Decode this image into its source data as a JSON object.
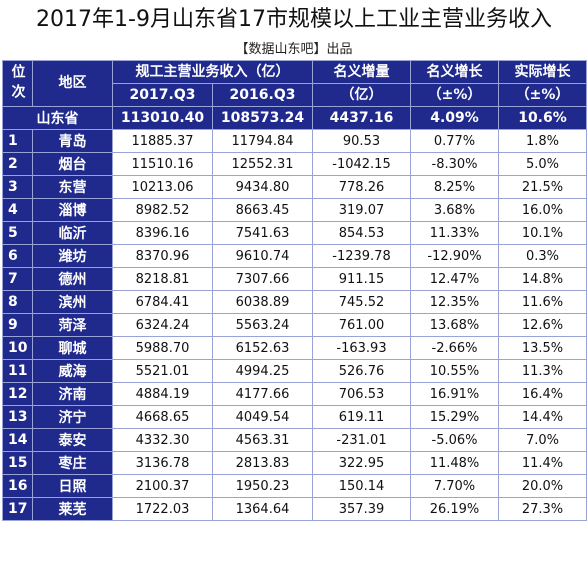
{
  "title": "2017年1-9月山东省17市规模以上工业主营业务收入",
  "source": "【数据山东吧】出品",
  "headers": {
    "rank": "位次",
    "region": "地区",
    "revenue_group": "规工主营业务收入（亿）",
    "q3_2017": "2017.Q3",
    "q3_2016": "2016.Q3",
    "nominal_increase_l1": "名义增量",
    "nominal_increase_l2": "（亿）",
    "nominal_growth_l1": "名义增长",
    "nominal_growth_l2": "（±%）",
    "real_growth_l1": "实际增长",
    "real_growth_l2": "（±%）"
  },
  "summary": {
    "region": "山东省",
    "q3_2017": "113010.40",
    "q3_2016": "108573.24",
    "increase": "4437.16",
    "nominal": "4.09%",
    "real": "10.6%"
  },
  "rows": [
    {
      "rank": "1",
      "region": "青岛",
      "q3_2017": "11885.37",
      "q3_2016": "11794.84",
      "increase": "90.53",
      "nominal": "0.77%",
      "real": "1.8%",
      "negative": false
    },
    {
      "rank": "2",
      "region": "烟台",
      "q3_2017": "11510.16",
      "q3_2016": "12552.31",
      "increase": "-1042.15",
      "nominal": "-8.30%",
      "real": "5.0%",
      "negative": true
    },
    {
      "rank": "3",
      "region": "东营",
      "q3_2017": "10213.06",
      "q3_2016": "9434.80",
      "increase": "778.26",
      "nominal": "8.25%",
      "real": "21.5%",
      "negative": false
    },
    {
      "rank": "4",
      "region": "淄博",
      "q3_2017": "8982.52",
      "q3_2016": "8663.45",
      "increase": "319.07",
      "nominal": "3.68%",
      "real": "16.0%",
      "negative": false
    },
    {
      "rank": "5",
      "region": "临沂",
      "q3_2017": "8396.16",
      "q3_2016": "7541.63",
      "increase": "854.53",
      "nominal": "11.33%",
      "real": "10.1%",
      "negative": false
    },
    {
      "rank": "6",
      "region": "潍坊",
      "q3_2017": "8370.96",
      "q3_2016": "9610.74",
      "increase": "-1239.78",
      "nominal": "-12.90%",
      "real": "0.3%",
      "negative": true
    },
    {
      "rank": "7",
      "region": "德州",
      "q3_2017": "8218.81",
      "q3_2016": "7307.66",
      "increase": "911.15",
      "nominal": "12.47%",
      "real": "14.8%",
      "negative": false
    },
    {
      "rank": "8",
      "region": "滨州",
      "q3_2017": "6784.41",
      "q3_2016": "6038.89",
      "increase": "745.52",
      "nominal": "12.35%",
      "real": "11.6%",
      "negative": false
    },
    {
      "rank": "9",
      "region": "菏泽",
      "q3_2017": "6324.24",
      "q3_2016": "5563.24",
      "increase": "761.00",
      "nominal": "13.68%",
      "real": "12.6%",
      "negative": false
    },
    {
      "rank": "10",
      "region": "聊城",
      "q3_2017": "5988.70",
      "q3_2016": "6152.63",
      "increase": "-163.93",
      "nominal": "-2.66%",
      "real": "13.5%",
      "negative": true
    },
    {
      "rank": "11",
      "region": "威海",
      "q3_2017": "5521.01",
      "q3_2016": "4994.25",
      "increase": "526.76",
      "nominal": "10.55%",
      "real": "11.3%",
      "negative": false
    },
    {
      "rank": "12",
      "region": "济南",
      "q3_2017": "4884.19",
      "q3_2016": "4177.66",
      "increase": "706.53",
      "nominal": "16.91%",
      "real": "16.4%",
      "negative": false
    },
    {
      "rank": "13",
      "region": "济宁",
      "q3_2017": "4668.65",
      "q3_2016": "4049.54",
      "increase": "619.11",
      "nominal": "15.29%",
      "real": "14.4%",
      "negative": false
    },
    {
      "rank": "14",
      "region": "泰安",
      "q3_2017": "4332.30",
      "q3_2016": "4563.31",
      "increase": "-231.01",
      "nominal": "-5.06%",
      "real": "7.0%",
      "negative": true
    },
    {
      "rank": "15",
      "region": "枣庄",
      "q3_2017": "3136.78",
      "q3_2016": "2813.83",
      "increase": "322.95",
      "nominal": "11.48%",
      "real": "11.4%",
      "negative": false
    },
    {
      "rank": "16",
      "region": "日照",
      "q3_2017": "2100.37",
      "q3_2016": "1950.23",
      "increase": "150.14",
      "nominal": "7.70%",
      "real": "20.0%",
      "negative": false
    },
    {
      "rank": "17",
      "region": "莱芜",
      "q3_2017": "1722.03",
      "q3_2016": "1364.64",
      "increase": "357.39",
      "nominal": "26.19%",
      "real": "27.3%",
      "negative": false
    }
  ],
  "colors": {
    "header_bg": "#1f2a8c",
    "header_text": "#ffffff",
    "negative": "#d9201b",
    "border": "#9aa3d6"
  }
}
